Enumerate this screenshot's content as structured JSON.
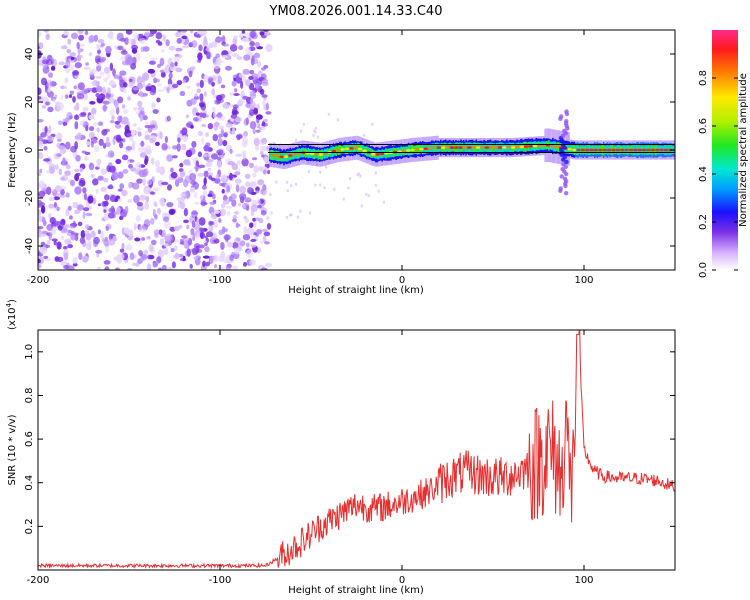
{
  "title": "YM08.2026.001.14.33.C40",
  "colors": {
    "signal": "#e62e2e",
    "noise": "#7a2ee6",
    "axis": "#000000",
    "refline": "#000000"
  },
  "chart_data": [
    {
      "type": "heatmap",
      "id": "spectrogram",
      "xlabel": "Height of straight line (km)",
      "ylabel": "Frequency (Hz)",
      "xlim": [
        -200,
        150
      ],
      "ylim": [
        -50,
        50
      ],
      "xticks": [
        -200,
        -100,
        0,
        100
      ],
      "yticks": [
        -40,
        -20,
        0,
        20,
        40
      ],
      "noise_region_x": [
        -200,
        -73
      ],
      "band_region_x": [
        -73,
        150
      ],
      "band_center_path": [
        {
          "x": -73,
          "y": -2
        },
        {
          "x": -65,
          "y": -3
        },
        {
          "x": -55,
          "y": -1
        },
        {
          "x": -45,
          "y": -2
        },
        {
          "x": -35,
          "y": 0
        },
        {
          "x": -25,
          "y": 1
        },
        {
          "x": -15,
          "y": -2
        },
        {
          "x": -5,
          "y": -1
        },
        {
          "x": 5,
          "y": 0
        },
        {
          "x": 20,
          "y": 1
        },
        {
          "x": 40,
          "y": 1
        },
        {
          "x": 60,
          "y": 1
        },
        {
          "x": 80,
          "y": 2
        },
        {
          "x": 87,
          "y": 1
        },
        {
          "x": 95,
          "y": 0
        },
        {
          "x": 150,
          "y": 0
        }
      ],
      "colorbar": {
        "label": "Normalized spectral amplitude",
        "range": [
          0,
          1
        ],
        "ticks": [
          0.0,
          0.2,
          0.4,
          0.6,
          0.8
        ],
        "tick_labels": [
          "0.0",
          "0.2",
          "0.4",
          "0.6",
          "0.8"
        ]
      }
    },
    {
      "type": "line",
      "id": "snr",
      "xlabel": "Height of straight line (km)",
      "ylabel": "SNR (10 * v/v)",
      "exponent_label": "(x10",
      "exponent": "4",
      "exponent_close": ")",
      "xlim": [
        -200,
        150
      ],
      "ylim": [
        0,
        1.1
      ],
      "xticks": [
        -200,
        -100,
        0,
        100
      ],
      "yticks": [
        0.2,
        0.4,
        0.6,
        0.8,
        1.0
      ],
      "ytick_labels": [
        "0.2",
        "0.4",
        "0.6",
        "0.8",
        "1.0"
      ],
      "series": [
        {
          "name": "SNR",
          "x": [
            -200,
            -150,
            -100,
            -75,
            -65,
            -55,
            -45,
            -35,
            -25,
            -15,
            -5,
            5,
            15,
            25,
            35,
            45,
            55,
            65,
            75,
            80,
            85,
            88,
            90,
            92,
            94,
            95,
            97,
            100,
            105,
            110,
            120,
            130,
            140,
            150
          ],
          "y": [
            0.02,
            0.02,
            0.02,
            0.02,
            0.07,
            0.13,
            0.2,
            0.25,
            0.3,
            0.28,
            0.3,
            0.33,
            0.36,
            0.42,
            0.45,
            0.43,
            0.42,
            0.45,
            0.5,
            0.55,
            0.5,
            0.4,
            0.8,
            0.35,
            0.45,
            0.75,
            1.08,
            0.55,
            0.46,
            0.43,
            0.42,
            0.42,
            0.41,
            0.38
          ]
        }
      ]
    }
  ]
}
